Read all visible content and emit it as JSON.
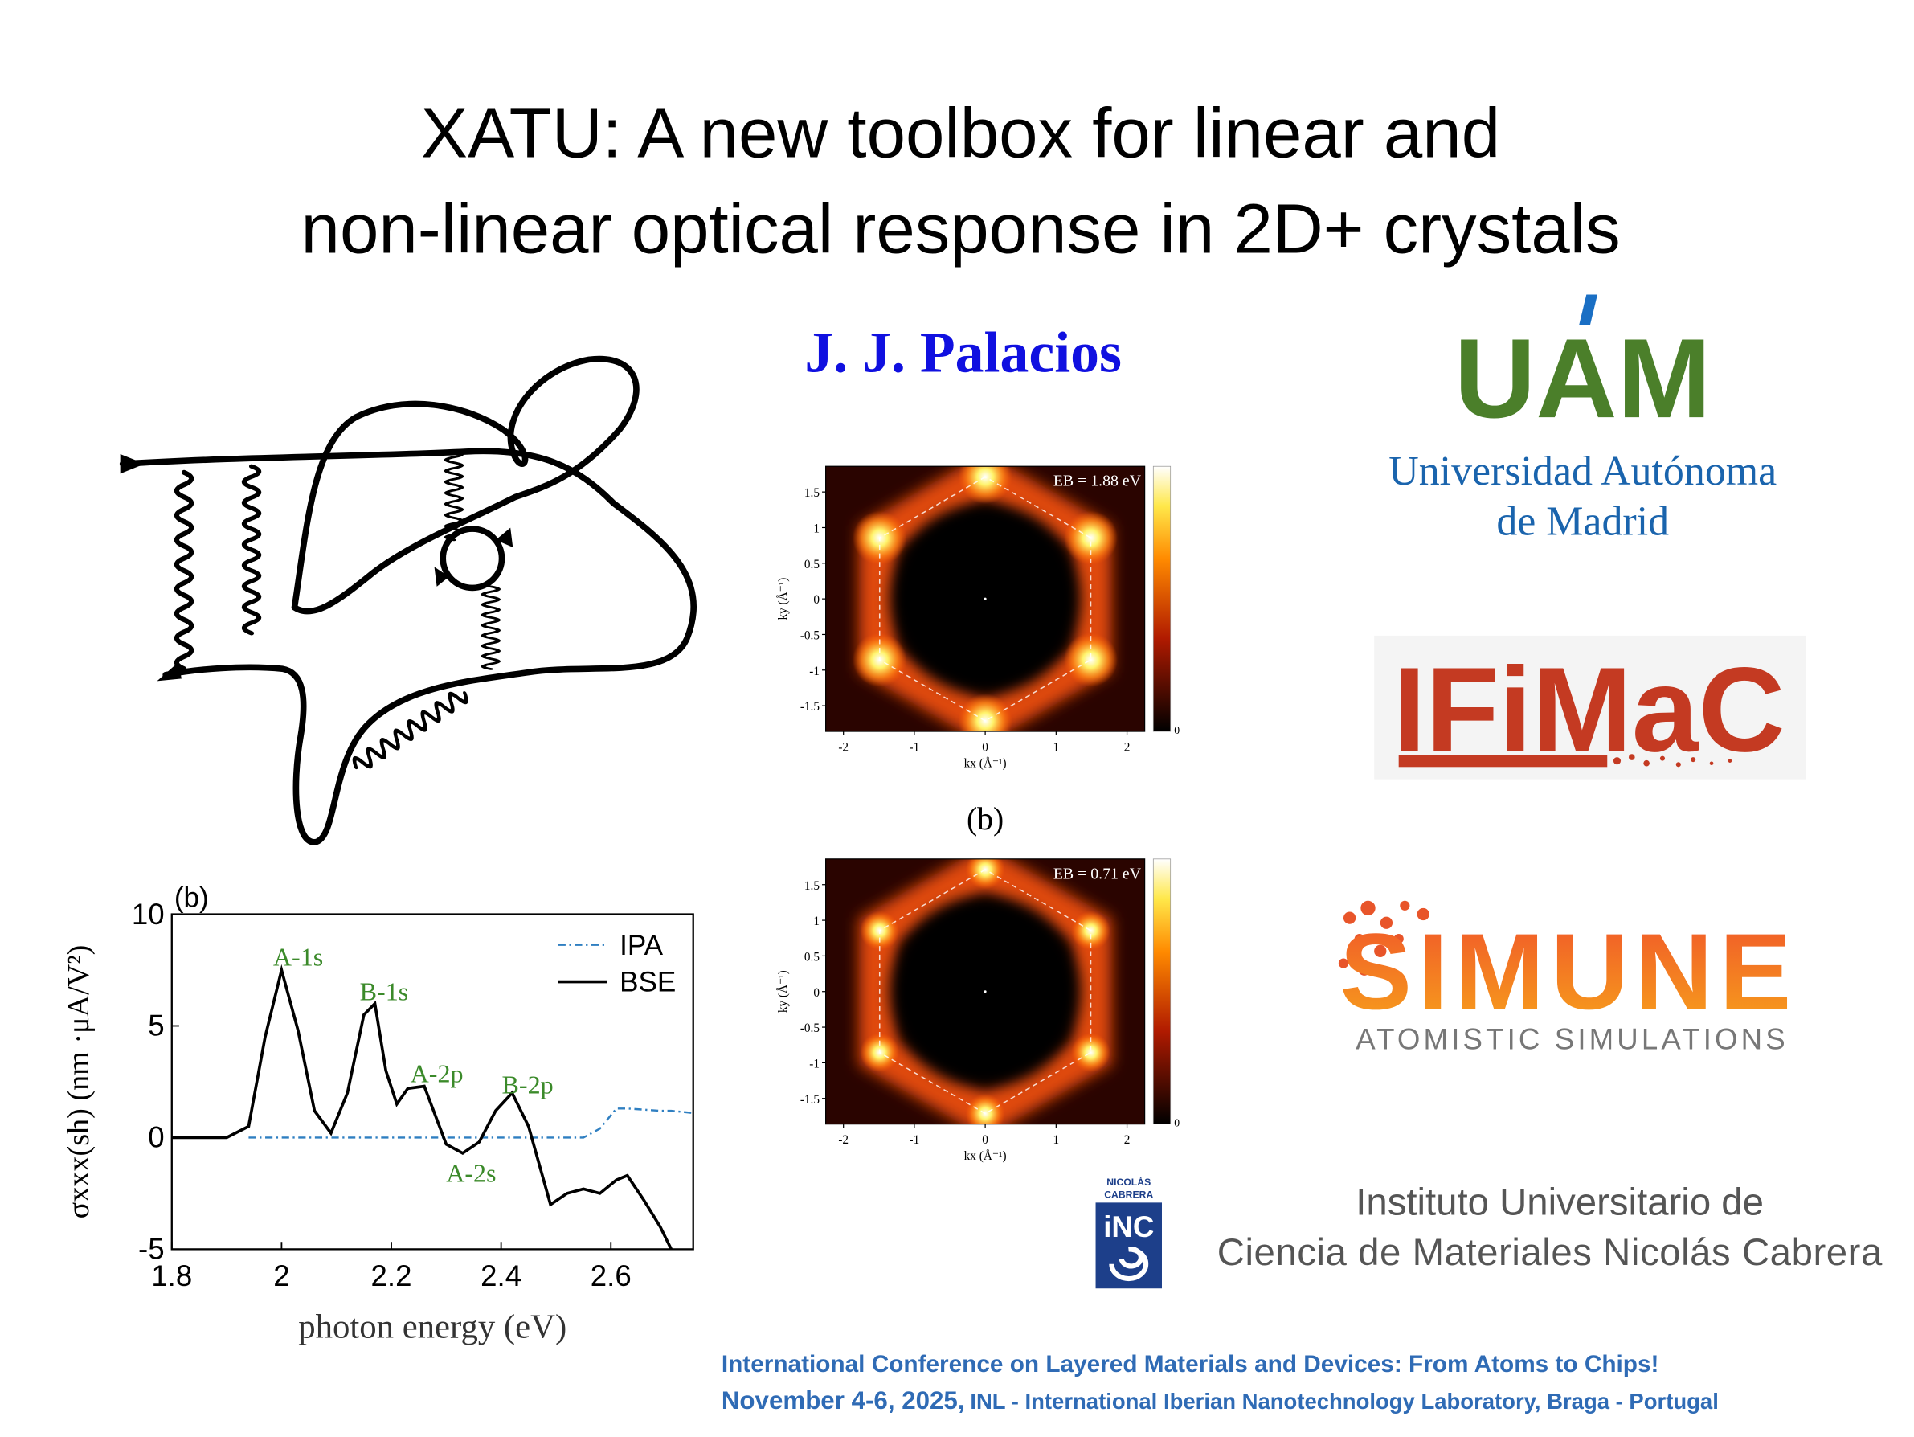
{
  "title": [
    "XATU: A new toolbox for linear and",
    "non-linear optical response in 2D+ crystals"
  ],
  "author": "J. J. Palacios",
  "logos": {
    "uam": {
      "mark": "UAM",
      "line1": "Universidad Autónoma",
      "line2": "de Madrid"
    },
    "ifimac": {
      "mark": "IFiMaC"
    },
    "simune": {
      "mark": "SIMUNE",
      "tagline": "ATOMISTIC SIMULATIONS"
    },
    "inc": {
      "line1": "NICOLÁS",
      "line2": "CABRERA",
      "mark": "iNC",
      "name1": "Instituto Universitario de",
      "name2": "Ciencia de Materiales Nicolás Cabrera"
    }
  },
  "footer": {
    "line1": "International Conference on Layered Materials and Devices: From Atoms to Chips!",
    "date": "November 4-6, 2025,",
    "venue": "INL - International Iberian Nanotechnology Laboratory, Braga - Portugal"
  },
  "chart_data": [
    {
      "type": "line",
      "panel_label": "(b)",
      "xlabel": "photon energy (eV)",
      "ylabel": "σxxx(sh) (nm ·μA/V²)",
      "x": [
        1.8,
        1.9,
        1.94,
        1.97,
        2.0,
        2.03,
        2.06,
        2.09,
        2.12,
        2.15,
        2.17,
        2.19,
        2.21,
        2.23,
        2.26,
        2.28,
        2.3,
        2.33,
        2.36,
        2.39,
        2.42,
        2.45,
        2.49,
        2.52,
        2.55,
        2.58,
        2.61,
        2.63,
        2.66,
        2.69,
        2.71,
        2.75
      ],
      "series": [
        {
          "name": "IPA",
          "color": "#2f7fc1",
          "linestyle": "dashdot",
          "values": [
            null,
            null,
            0,
            0,
            0,
            0,
            0,
            0,
            0,
            0,
            0,
            0,
            0,
            0,
            0,
            0,
            0,
            0,
            0,
            0,
            0,
            0,
            0,
            0,
            0,
            0.4,
            1.3,
            1.3,
            1.25,
            1.2,
            1.2,
            1.1
          ]
        },
        {
          "name": "BSE",
          "color": "#000000",
          "linestyle": "solid",
          "values": [
            0,
            0,
            0.5,
            4.5,
            7.5,
            4.8,
            1.2,
            0.2,
            2.0,
            5.5,
            6.0,
            3.0,
            1.5,
            2.2,
            2.3,
            1.0,
            -0.3,
            -0.7,
            -0.2,
            1.2,
            2.0,
            0.5,
            -3.0,
            -2.5,
            -2.3,
            -2.5,
            -1.9,
            -1.7,
            -2.8,
            -4.0,
            -5,
            null
          ]
        }
      ],
      "annotations": [
        "A-1s",
        "B-1s",
        "A-2p",
        "A-2s",
        "B-2p"
      ],
      "xlim": [
        1.8,
        2.75
      ],
      "ylim": [
        -5,
        10
      ],
      "xticks": [
        1.8,
        2,
        2.2,
        2.4,
        2.6
      ],
      "yticks": [
        -5,
        0,
        5,
        10
      ],
      "legend": "upper right"
    },
    {
      "type": "heatmap",
      "label": "EB = 1.88 eV",
      "xlabel": "kx (Å⁻¹)",
      "ylabel": "ky (Å⁻¹)",
      "xlim": [
        -2.25,
        2.25
      ],
      "ylim": [
        -1.86,
        1.86
      ],
      "xticks": [
        -2,
        -1,
        0,
        1,
        2
      ],
      "yticks": [
        -1.5,
        -1,
        -0.5,
        0,
        0.5,
        1,
        1.5
      ],
      "colorbar_ticks": [
        0
      ]
    },
    {
      "type": "heatmap",
      "panel_label": "(b)",
      "label": "EB = 0.71 eV",
      "xlabel": "kx (Å⁻¹)",
      "ylabel": "ky (Å⁻¹)",
      "xlim": [
        -2.25,
        2.25
      ],
      "ylim": [
        -1.86,
        1.86
      ],
      "xticks": [
        -2,
        -1,
        0,
        1,
        2
      ],
      "yticks": [
        -1.5,
        -1,
        -0.5,
        0,
        0.5,
        1,
        1.5
      ],
      "colorbar_ticks": [
        0
      ]
    }
  ]
}
